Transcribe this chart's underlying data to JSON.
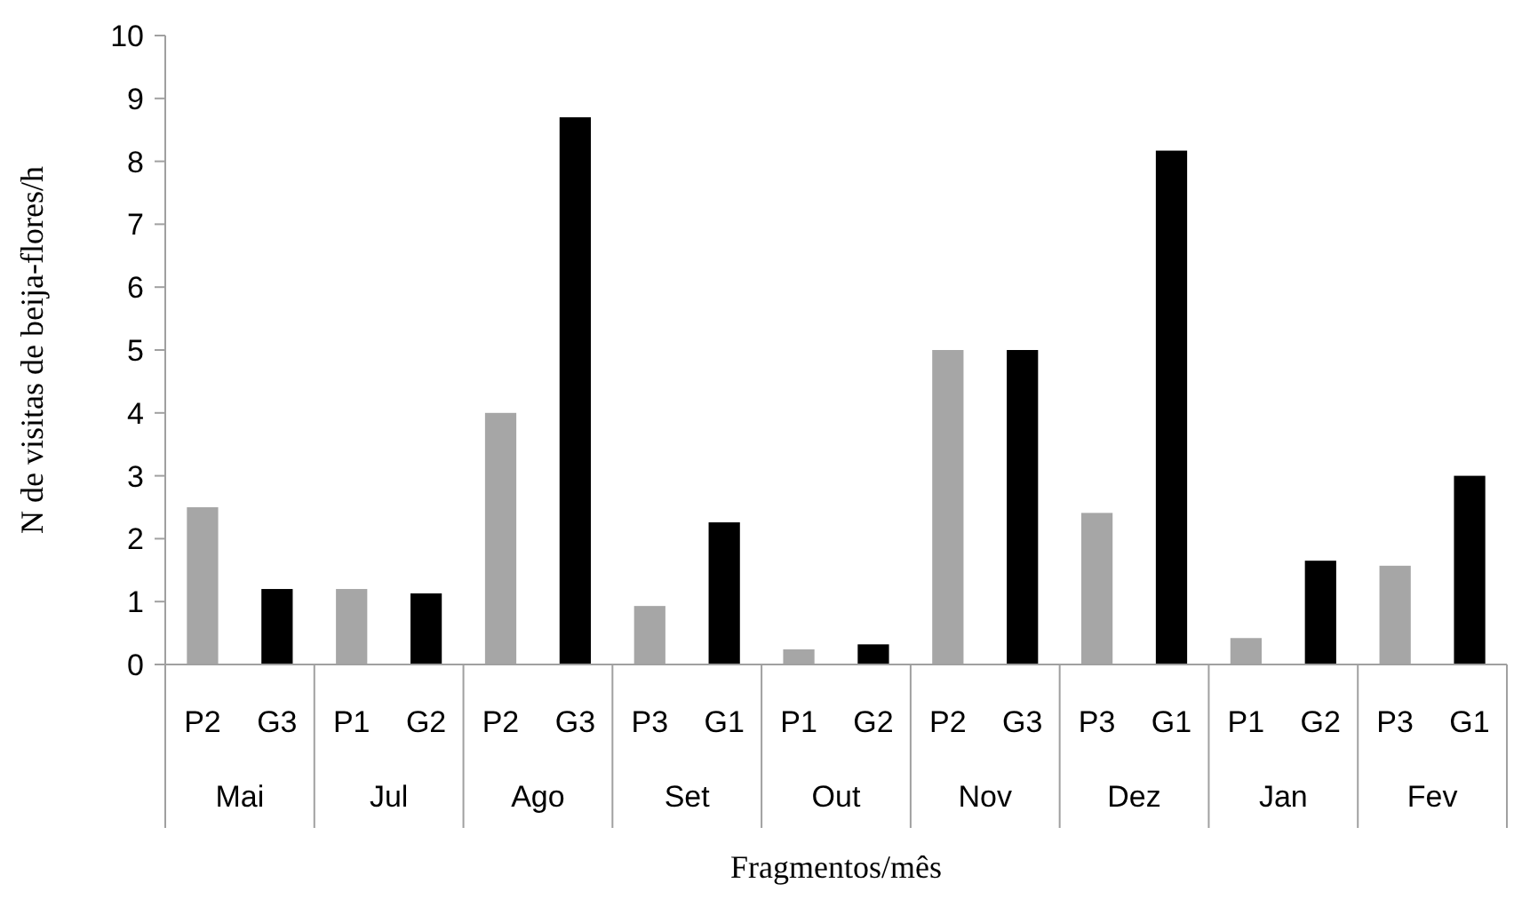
{
  "chart_data": {
    "type": "bar",
    "xlabel": "Fragmentos/mês",
    "ylabel": "N de visitas de beija-flores/h",
    "categories": [
      "P2",
      "G3",
      "P1",
      "G2",
      "P2",
      "G3",
      "P3",
      "G1",
      "P1",
      "G2",
      "P2",
      "G3",
      "P3",
      "G1",
      "P1",
      "G2",
      "P3",
      "G1"
    ],
    "values": [
      2.5,
      1.2,
      1.2,
      1.13,
      4.0,
      8.7,
      0.93,
      2.26,
      0.24,
      0.32,
      5.0,
      5.0,
      2.41,
      8.17,
      0.42,
      1.65,
      1.57,
      3.0
    ],
    "colors": [
      "#a6a6a6",
      "#000000",
      "#a6a6a6",
      "#000000",
      "#a6a6a6",
      "#000000",
      "#a6a6a6",
      "#000000",
      "#a6a6a6",
      "#000000",
      "#a6a6a6",
      "#000000",
      "#a6a6a6",
      "#000000",
      "#a6a6a6",
      "#000000",
      "#a6a6a6",
      "#000000"
    ],
    "annotations": [
      "Mai",
      "Jul",
      "Ago",
      "Set",
      "Out",
      "Nov",
      "Dez",
      "Jan",
      "Fev"
    ],
    "ylim": [
      0,
      10
    ],
    "yticks": [
      0,
      1,
      2,
      3,
      4,
      5,
      6,
      7,
      8,
      9,
      10
    ],
    "grid": false
  }
}
